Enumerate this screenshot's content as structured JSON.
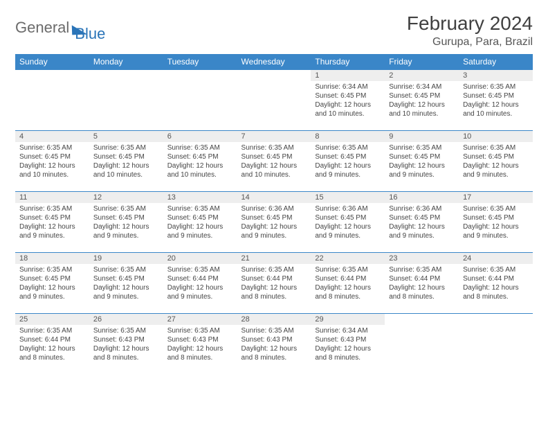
{
  "logo": {
    "main": "General",
    "accent": "Blue"
  },
  "title": "February 2024",
  "location": "Gurupa, Para, Brazil",
  "colors": {
    "header_bg": "#3a86c8",
    "header_text": "#ffffff",
    "daynum_bg": "#eeeeee",
    "border": "#3a86c8",
    "logo_accent": "#2a74b8",
    "logo_text": "#6b6b6b"
  },
  "weekdays": [
    "Sunday",
    "Monday",
    "Tuesday",
    "Wednesday",
    "Thursday",
    "Friday",
    "Saturday"
  ],
  "weeks": [
    [
      {
        "n": "",
        "sr": "",
        "ss": "",
        "dl": ""
      },
      {
        "n": "",
        "sr": "",
        "ss": "",
        "dl": ""
      },
      {
        "n": "",
        "sr": "",
        "ss": "",
        "dl": ""
      },
      {
        "n": "",
        "sr": "",
        "ss": "",
        "dl": ""
      },
      {
        "n": "1",
        "sr": "Sunrise: 6:34 AM",
        "ss": "Sunset: 6:45 PM",
        "dl": "Daylight: 12 hours and 10 minutes."
      },
      {
        "n": "2",
        "sr": "Sunrise: 6:34 AM",
        "ss": "Sunset: 6:45 PM",
        "dl": "Daylight: 12 hours and 10 minutes."
      },
      {
        "n": "3",
        "sr": "Sunrise: 6:35 AM",
        "ss": "Sunset: 6:45 PM",
        "dl": "Daylight: 12 hours and 10 minutes."
      }
    ],
    [
      {
        "n": "4",
        "sr": "Sunrise: 6:35 AM",
        "ss": "Sunset: 6:45 PM",
        "dl": "Daylight: 12 hours and 10 minutes."
      },
      {
        "n": "5",
        "sr": "Sunrise: 6:35 AM",
        "ss": "Sunset: 6:45 PM",
        "dl": "Daylight: 12 hours and 10 minutes."
      },
      {
        "n": "6",
        "sr": "Sunrise: 6:35 AM",
        "ss": "Sunset: 6:45 PM",
        "dl": "Daylight: 12 hours and 10 minutes."
      },
      {
        "n": "7",
        "sr": "Sunrise: 6:35 AM",
        "ss": "Sunset: 6:45 PM",
        "dl": "Daylight: 12 hours and 10 minutes."
      },
      {
        "n": "8",
        "sr": "Sunrise: 6:35 AM",
        "ss": "Sunset: 6:45 PM",
        "dl": "Daylight: 12 hours and 9 minutes."
      },
      {
        "n": "9",
        "sr": "Sunrise: 6:35 AM",
        "ss": "Sunset: 6:45 PM",
        "dl": "Daylight: 12 hours and 9 minutes."
      },
      {
        "n": "10",
        "sr": "Sunrise: 6:35 AM",
        "ss": "Sunset: 6:45 PM",
        "dl": "Daylight: 12 hours and 9 minutes."
      }
    ],
    [
      {
        "n": "11",
        "sr": "Sunrise: 6:35 AM",
        "ss": "Sunset: 6:45 PM",
        "dl": "Daylight: 12 hours and 9 minutes."
      },
      {
        "n": "12",
        "sr": "Sunrise: 6:35 AM",
        "ss": "Sunset: 6:45 PM",
        "dl": "Daylight: 12 hours and 9 minutes."
      },
      {
        "n": "13",
        "sr": "Sunrise: 6:35 AM",
        "ss": "Sunset: 6:45 PM",
        "dl": "Daylight: 12 hours and 9 minutes."
      },
      {
        "n": "14",
        "sr": "Sunrise: 6:36 AM",
        "ss": "Sunset: 6:45 PM",
        "dl": "Daylight: 12 hours and 9 minutes."
      },
      {
        "n": "15",
        "sr": "Sunrise: 6:36 AM",
        "ss": "Sunset: 6:45 PM",
        "dl": "Daylight: 12 hours and 9 minutes."
      },
      {
        "n": "16",
        "sr": "Sunrise: 6:36 AM",
        "ss": "Sunset: 6:45 PM",
        "dl": "Daylight: 12 hours and 9 minutes."
      },
      {
        "n": "17",
        "sr": "Sunrise: 6:35 AM",
        "ss": "Sunset: 6:45 PM",
        "dl": "Daylight: 12 hours and 9 minutes."
      }
    ],
    [
      {
        "n": "18",
        "sr": "Sunrise: 6:35 AM",
        "ss": "Sunset: 6:45 PM",
        "dl": "Daylight: 12 hours and 9 minutes."
      },
      {
        "n": "19",
        "sr": "Sunrise: 6:35 AM",
        "ss": "Sunset: 6:45 PM",
        "dl": "Daylight: 12 hours and 9 minutes."
      },
      {
        "n": "20",
        "sr": "Sunrise: 6:35 AM",
        "ss": "Sunset: 6:44 PM",
        "dl": "Daylight: 12 hours and 9 minutes."
      },
      {
        "n": "21",
        "sr": "Sunrise: 6:35 AM",
        "ss": "Sunset: 6:44 PM",
        "dl": "Daylight: 12 hours and 8 minutes."
      },
      {
        "n": "22",
        "sr": "Sunrise: 6:35 AM",
        "ss": "Sunset: 6:44 PM",
        "dl": "Daylight: 12 hours and 8 minutes."
      },
      {
        "n": "23",
        "sr": "Sunrise: 6:35 AM",
        "ss": "Sunset: 6:44 PM",
        "dl": "Daylight: 12 hours and 8 minutes."
      },
      {
        "n": "24",
        "sr": "Sunrise: 6:35 AM",
        "ss": "Sunset: 6:44 PM",
        "dl": "Daylight: 12 hours and 8 minutes."
      }
    ],
    [
      {
        "n": "25",
        "sr": "Sunrise: 6:35 AM",
        "ss": "Sunset: 6:44 PM",
        "dl": "Daylight: 12 hours and 8 minutes."
      },
      {
        "n": "26",
        "sr": "Sunrise: 6:35 AM",
        "ss": "Sunset: 6:43 PM",
        "dl": "Daylight: 12 hours and 8 minutes."
      },
      {
        "n": "27",
        "sr": "Sunrise: 6:35 AM",
        "ss": "Sunset: 6:43 PM",
        "dl": "Daylight: 12 hours and 8 minutes."
      },
      {
        "n": "28",
        "sr": "Sunrise: 6:35 AM",
        "ss": "Sunset: 6:43 PM",
        "dl": "Daylight: 12 hours and 8 minutes."
      },
      {
        "n": "29",
        "sr": "Sunrise: 6:34 AM",
        "ss": "Sunset: 6:43 PM",
        "dl": "Daylight: 12 hours and 8 minutes."
      },
      {
        "n": "",
        "sr": "",
        "ss": "",
        "dl": ""
      },
      {
        "n": "",
        "sr": "",
        "ss": "",
        "dl": ""
      }
    ]
  ]
}
